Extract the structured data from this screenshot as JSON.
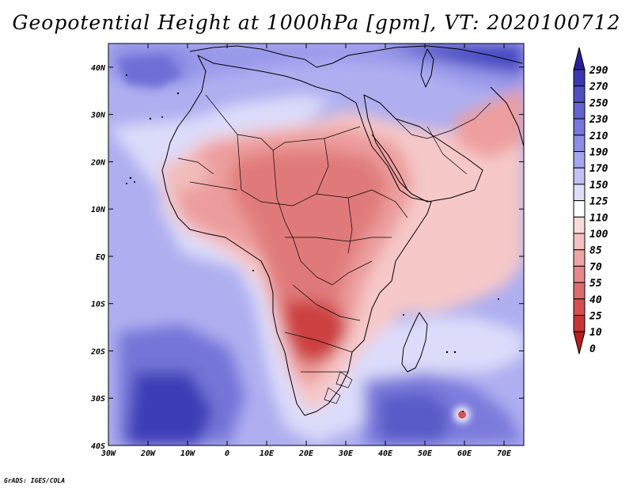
{
  "title": "Geopotential Height at 1000hPa [gpm], VT: 2020100712",
  "credit": "GrADS: IGES/COLA",
  "map": {
    "variable": "Geopotential Height",
    "level": "1000hPa",
    "units": "gpm",
    "valid_time": "2020100712",
    "lon_range": [
      -30,
      75
    ],
    "lat_range": [
      -40,
      45
    ],
    "lat_labels": [
      "40N",
      "30N",
      "20N",
      "10N",
      "EQ",
      "10S",
      "20S",
      "30S",
      "40S"
    ],
    "lon_labels": [
      "30W",
      "20W",
      "10W",
      "0",
      "10E",
      "20E",
      "30E",
      "40E",
      "50E",
      "60E",
      "70E"
    ]
  },
  "colorbar": {
    "levels": [
      "290",
      "270",
      "250",
      "230",
      "210",
      "190",
      "170",
      "150",
      "125",
      "110",
      "100",
      "85",
      "70",
      "55",
      "40",
      "25",
      "10",
      "0"
    ],
    "colors": [
      "#2a1f9a",
      "#3b37b3",
      "#4f4fc4",
      "#6363d2",
      "#7777dd",
      "#8d8de6",
      "#a6a6ee",
      "#c2c2f4",
      "#dedefa",
      "#ffffff",
      "#fad9d9",
      "#f4c0c0",
      "#eea4a4",
      "#e68888",
      "#dd6b6b",
      "#d45050",
      "#c93535",
      "#b81d1d"
    ]
  }
}
